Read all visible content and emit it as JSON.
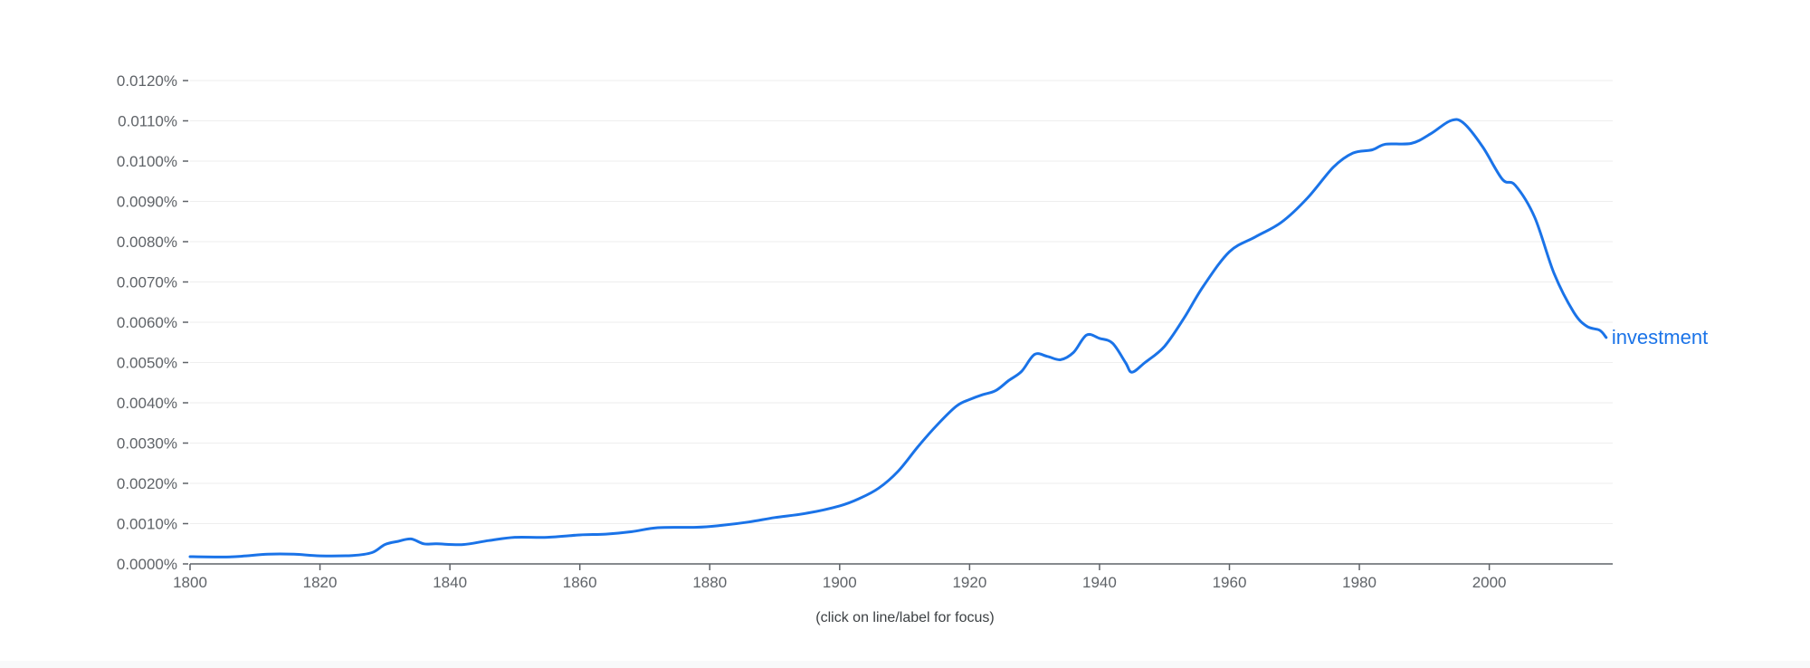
{
  "caption": "(click on line/label for focus)",
  "colors": {
    "series": "#1a73e8",
    "axis": "#5f6368",
    "grid": "#eeeeee"
  },
  "chart_data": {
    "type": "line",
    "title": "",
    "xlabel": "",
    "ylabel": "",
    "xlim": [
      1800,
      2019
    ],
    "ylim": [
      0,
      0.012
    ],
    "grid": true,
    "x_ticks": [
      1800,
      1820,
      1840,
      1860,
      1880,
      1900,
      1920,
      1940,
      1960,
      1980,
      2000
    ],
    "y_ticks": [
      {
        "value": 0,
        "label": "0.0000%"
      },
      {
        "value": 0.001,
        "label": "0.0010%"
      },
      {
        "value": 0.002,
        "label": "0.0020%"
      },
      {
        "value": 0.003,
        "label": "0.0030%"
      },
      {
        "value": 0.004,
        "label": "0.0040%"
      },
      {
        "value": 0.005,
        "label": "0.0050%"
      },
      {
        "value": 0.006,
        "label": "0.0060%"
      },
      {
        "value": 0.007,
        "label": "0.0070%"
      },
      {
        "value": 0.008,
        "label": "0.0080%"
      },
      {
        "value": 0.009,
        "label": "0.0090%"
      },
      {
        "value": 0.01,
        "label": "0.0100%"
      },
      {
        "value": 0.011,
        "label": "0.0110%"
      },
      {
        "value": 0.012,
        "label": "0.0120%"
      }
    ],
    "series": [
      {
        "name": "investment",
        "color": "#1a73e8",
        "points": [
          [
            1800,
            0.00018
          ],
          [
            1805,
            0.00017
          ],
          [
            1808,
            0.00019
          ],
          [
            1812,
            0.00024
          ],
          [
            1816,
            0.00024
          ],
          [
            1820,
            0.0002
          ],
          [
            1825,
            0.00021
          ],
          [
            1828,
            0.00028
          ],
          [
            1830,
            0.00048
          ],
          [
            1832,
            0.00056
          ],
          [
            1834,
            0.00062
          ],
          [
            1836,
            0.0005
          ],
          [
            1838,
            0.0005
          ],
          [
            1842,
            0.00048
          ],
          [
            1846,
            0.00058
          ],
          [
            1850,
            0.00066
          ],
          [
            1855,
            0.00066
          ],
          [
            1860,
            0.00072
          ],
          [
            1864,
            0.00074
          ],
          [
            1868,
            0.0008
          ],
          [
            1872,
            0.0009
          ],
          [
            1878,
            0.00091
          ],
          [
            1882,
            0.00096
          ],
          [
            1886,
            0.00104
          ],
          [
            1890,
            0.00115
          ],
          [
            1895,
            0.00126
          ],
          [
            1900,
            0.00144
          ],
          [
            1903,
            0.00162
          ],
          [
            1906,
            0.00188
          ],
          [
            1909,
            0.0023
          ],
          [
            1912,
            0.0029
          ],
          [
            1915,
            0.00345
          ],
          [
            1918,
            0.00392
          ],
          [
            1920,
            0.00408
          ],
          [
            1922,
            0.0042
          ],
          [
            1924,
            0.0043
          ],
          [
            1926,
            0.00455
          ],
          [
            1928,
            0.00478
          ],
          [
            1930,
            0.0052
          ],
          [
            1932,
            0.00515
          ],
          [
            1934,
            0.00507
          ],
          [
            1936,
            0.00525
          ],
          [
            1938,
            0.00568
          ],
          [
            1940,
            0.0056
          ],
          [
            1942,
            0.00548
          ],
          [
            1944,
            0.005
          ],
          [
            1945,
            0.00476
          ],
          [
            1947,
            0.005
          ],
          [
            1950,
            0.0054
          ],
          [
            1953,
            0.0061
          ],
          [
            1956,
            0.0069
          ],
          [
            1960,
            0.00775
          ],
          [
            1964,
            0.00812
          ],
          [
            1968,
            0.00848
          ],
          [
            1972,
            0.00908
          ],
          [
            1976,
            0.00985
          ],
          [
            1979,
            0.0102
          ],
          [
            1982,
            0.01028
          ],
          [
            1984,
            0.01042
          ],
          [
            1988,
            0.01044
          ],
          [
            1991,
            0.01068
          ],
          [
            1994,
            0.011
          ],
          [
            1996,
            0.01095
          ],
          [
            1999,
            0.01035
          ],
          [
            2002,
            0.00955
          ],
          [
            2004,
            0.0094
          ],
          [
            2007,
            0.0086
          ],
          [
            2010,
            0.0072
          ],
          [
            2013,
            0.00625
          ],
          [
            2015,
            0.0059
          ],
          [
            2017,
            0.0058
          ],
          [
            2018,
            0.00562
          ]
        ]
      }
    ]
  }
}
